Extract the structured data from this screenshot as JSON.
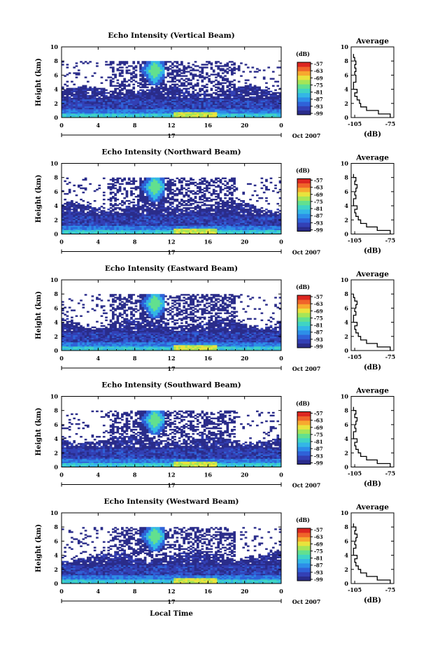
{
  "figure": {
    "xlabel": "Local Time",
    "date_label": "Oct 2007",
    "day_label": "17",
    "colorbar_unit": "(dB)",
    "colorbar_ticks": [
      "-57",
      "-63",
      "-69",
      "-75",
      "-81",
      "-87",
      "-93",
      "-99"
    ],
    "colors": [
      "#2a2c8a",
      "#3340b5",
      "#2f62d8",
      "#2d8ee8",
      "#33b7e6",
      "#3fd4c4",
      "#62e08f",
      "#a5e557",
      "#e9e33d",
      "#f7a92f",
      "#f0642a",
      "#dc2620"
    ],
    "panel_ylabel": "Height (km)",
    "avg_title": "Average",
    "avg_xlabel": "(dB)"
  },
  "chart_data": [
    {
      "type": "heatmap",
      "title": "Echo Intensity (Vertical Beam)",
      "xlabel": "",
      "ylabel": "Height (km)",
      "x_ticks": [
        "0",
        "4",
        "8",
        "12",
        "16",
        "20",
        "0"
      ],
      "y_ticks": [
        "0",
        "2",
        "4",
        "6",
        "8",
        "10"
      ],
      "xlim": [
        0,
        24
      ],
      "ylim": [
        0,
        10
      ],
      "color_scale": {
        "label": "(dB)",
        "range": [
          -99,
          -57
        ]
      },
      "average_profile": {
        "title": "Average",
        "xlabel": "(dB)",
        "x_ticks": [
          "-105",
          "-75"
        ],
        "xlim": [
          -108,
          -72
        ],
        "heights": [
          0,
          0.5,
          1,
          1.5,
          2,
          2.5,
          3,
          3.5,
          4,
          4.5,
          5,
          5.5,
          6,
          6.5,
          7,
          7.5,
          8,
          8.5
        ],
        "values": [
          -75,
          -85,
          -95,
          -100,
          -101,
          -103,
          -105,
          -103,
          -106,
          -106,
          -104,
          -104,
          -105,
          -104,
          -105,
          -104,
          -105,
          -106
        ]
      }
    },
    {
      "type": "heatmap",
      "title": "Echo Intensity (Northward Beam)",
      "xlabel": "",
      "ylabel": "Height (km)",
      "x_ticks": [
        "0",
        "4",
        "8",
        "12",
        "16",
        "20",
        "0"
      ],
      "y_ticks": [
        "0",
        "2",
        "4",
        "6",
        "8",
        "10"
      ],
      "xlim": [
        0,
        24
      ],
      "ylim": [
        0,
        10
      ],
      "color_scale": {
        "label": "(dB)",
        "range": [
          -99,
          -57
        ]
      },
      "average_profile": {
        "title": "Average",
        "xlabel": "(dB)",
        "x_ticks": [
          "-105",
          "-75"
        ],
        "xlim": [
          -108,
          -72
        ],
        "heights": [
          0,
          0.5,
          1,
          1.5,
          2,
          2.5,
          3,
          3.5,
          4,
          4.5,
          5,
          5.5,
          6,
          6.5,
          7,
          7.5,
          8
        ],
        "values": [
          -75,
          -86,
          -95,
          -100,
          -102,
          -104,
          -105,
          -103,
          -106,
          -106,
          -104,
          -105,
          -104,
          -103,
          -105,
          -104,
          -106
        ]
      }
    },
    {
      "type": "heatmap",
      "title": "Echo Intensity (Eastward Beam)",
      "xlabel": "",
      "ylabel": "Height (km)",
      "x_ticks": [
        "0",
        "4",
        "8",
        "12",
        "16",
        "20",
        "0"
      ],
      "y_ticks": [
        "0",
        "2",
        "4",
        "6",
        "8",
        "10"
      ],
      "xlim": [
        0,
        24
      ],
      "ylim": [
        0,
        10
      ],
      "color_scale": {
        "label": "(dB)",
        "range": [
          -99,
          -57
        ]
      },
      "average_profile": {
        "title": "Average",
        "xlabel": "(dB)",
        "x_ticks": [
          "-105",
          "-75"
        ],
        "xlim": [
          -108,
          -72
        ],
        "heights": [
          0,
          0.5,
          1,
          1.5,
          2,
          2.5,
          3,
          3.5,
          4,
          4.5,
          5,
          5.5,
          6,
          6.5,
          7,
          7.5
        ],
        "values": [
          -75,
          -86,
          -95,
          -100,
          -102,
          -104,
          -105,
          -103,
          -106,
          -106,
          -104,
          -105,
          -104,
          -103,
          -105,
          -106
        ]
      }
    },
    {
      "type": "heatmap",
      "title": "Echo Intensity (Southward Beam)",
      "xlabel": "",
      "ylabel": "Height (km)",
      "x_ticks": [
        "0",
        "4",
        "8",
        "12",
        "16",
        "20",
        "0"
      ],
      "y_ticks": [
        "0",
        "2",
        "4",
        "6",
        "8",
        "10"
      ],
      "xlim": [
        0,
        24
      ],
      "ylim": [
        0,
        10
      ],
      "color_scale": {
        "label": "(dB)",
        "range": [
          -99,
          -57
        ]
      },
      "average_profile": {
        "title": "Average",
        "xlabel": "(dB)",
        "x_ticks": [
          "-105",
          "-75"
        ],
        "xlim": [
          -108,
          -72
        ],
        "heights": [
          0,
          0.5,
          1,
          1.5,
          2,
          2.5,
          3,
          3.5,
          4,
          4.5,
          5,
          5.5,
          6,
          6.5,
          7,
          7.5,
          8
        ],
        "values": [
          -75,
          -86,
          -95,
          -100,
          -102,
          -104,
          -105,
          -103,
          -106,
          -106,
          -104,
          -105,
          -104,
          -103,
          -105,
          -104,
          -106
        ]
      }
    },
    {
      "type": "heatmap",
      "title": "Echo Intensity (Westward Beam)",
      "xlabel": "Local Time",
      "ylabel": "Height (km)",
      "x_ticks": [
        "0",
        "4",
        "8",
        "12",
        "16",
        "20",
        "0"
      ],
      "y_ticks": [
        "0",
        "2",
        "4",
        "6",
        "8",
        "10"
      ],
      "xlim": [
        0,
        24
      ],
      "ylim": [
        0,
        10
      ],
      "color_scale": {
        "label": "(dB)",
        "range": [
          -99,
          -57
        ]
      },
      "average_profile": {
        "title": "Average",
        "xlabel": "(dB)",
        "x_ticks": [
          "-105",
          "-75"
        ],
        "xlim": [
          -108,
          -72
        ],
        "heights": [
          0,
          0.5,
          1,
          1.5,
          2,
          2.5,
          3,
          3.5,
          4,
          4.5,
          5,
          5.5,
          6,
          6.5,
          7,
          7.5,
          8
        ],
        "values": [
          -75,
          -86,
          -95,
          -100,
          -102,
          -104,
          -105,
          -103,
          -106,
          -106,
          -104,
          -105,
          -104,
          -103,
          -105,
          -104,
          -106
        ]
      }
    }
  ]
}
